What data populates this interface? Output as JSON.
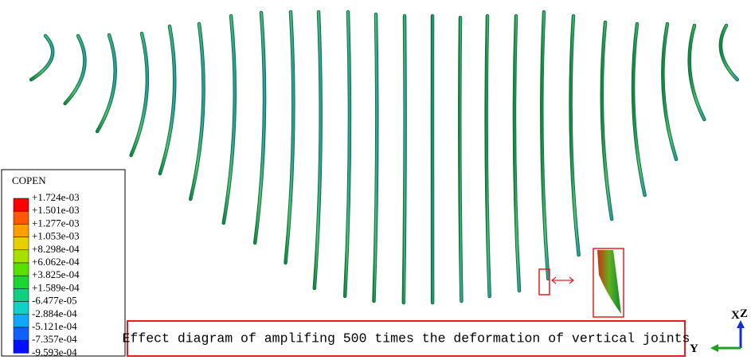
{
  "legend": {
    "title": "COPEN",
    "labels": [
      "+1.724e-03",
      "+1.501e-03",
      "+1.277e-03",
      "+1.053e-03",
      "+8.298e-04",
      "+6.062e-04",
      "+3.825e-04",
      "+1.589e-04",
      "-6.477e-05",
      "-2.884e-04",
      "-5.121e-04",
      "-7.357e-04",
      "-9.593e-04"
    ]
  },
  "caption": "Effect diagram of amplifing 500 times the deformation of vertical joints",
  "triad": {
    "x": "X",
    "z": "Z",
    "y": "Y"
  }
}
